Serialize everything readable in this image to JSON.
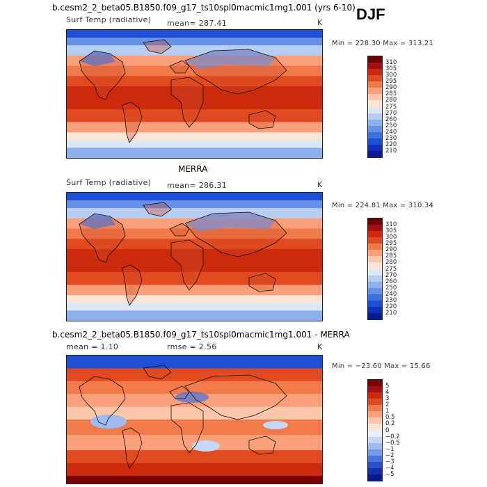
{
  "season": "DJF",
  "panels": [
    {
      "title": "b.cesm2_2_beta05.B1850.f09_g17_ts10spl0macmic1mg1.001 (yrs 6-10)",
      "variable": "Surf Temp (radiative)",
      "mean_text": "mean= 287.41",
      "units": "K",
      "minmax_text": "Min = 228.30  Max = 313.21",
      "colorbar": {
        "labels": [
          "310",
          "305",
          "300",
          "295",
          "290",
          "285",
          "280",
          "275",
          "270",
          "260",
          "250",
          "240",
          "230",
          "220",
          "210"
        ],
        "colors": [
          "#6b0000",
          "#a50f15",
          "#cb2a0d",
          "#e04a1e",
          "#f07a4a",
          "#f9a07a",
          "#fcc6a8",
          "#fbe4d4",
          "#dbe7f5",
          "#b7cdf0",
          "#8eb0ec",
          "#6490e6",
          "#3a6fe0",
          "#1f4fd4",
          "#1030b8",
          "#0a1a90"
        ]
      },
      "map_type": "abs"
    },
    {
      "title": "MERRA",
      "variable": "Surf Temp (radiative)",
      "mean_text": "mean= 286.31",
      "units": "K",
      "minmax_text": "Min = 224.81  Max = 310.34",
      "colorbar": {
        "labels": [
          "310",
          "305",
          "300",
          "295",
          "290",
          "285",
          "280",
          "275",
          "270",
          "260",
          "250",
          "240",
          "230",
          "220",
          "210"
        ],
        "colors": [
          "#6b0000",
          "#a50f15",
          "#cb2a0d",
          "#e04a1e",
          "#f07a4a",
          "#f9a07a",
          "#fcc6a8",
          "#fbe4d4",
          "#dbe7f5",
          "#b7cdf0",
          "#8eb0ec",
          "#6490e6",
          "#3a6fe0",
          "#1f4fd4",
          "#1030b8",
          "#0a1a90"
        ]
      },
      "map_type": "abs"
    },
    {
      "title": "b.cesm2_2_beta05.B1850.f09_g17_ts10spl0macmic1mg1.001 - MERRA",
      "mean_text": "mean =    1.10",
      "rmse_text": "rmse =    2.56",
      "units": "K",
      "minmax_text": "Min = −23.60  Max =   15.66",
      "colorbar": {
        "labels": [
          "5",
          "4",
          "3",
          "2",
          "1",
          "0.5",
          "0.2",
          "0",
          "−0.2",
          "−0.5",
          "−1",
          "−2",
          "−3",
          "−4",
          "−5"
        ],
        "colors": [
          "#7a0000",
          "#a50f15",
          "#cb2a0d",
          "#e04a1e",
          "#f07a4a",
          "#f9a07a",
          "#fcc6a8",
          "#fbe4d4",
          "#e6eefa",
          "#c4d7f4",
          "#9cbbee",
          "#7298e6",
          "#4a72dc",
          "#2a4fcc",
          "#1030b0",
          "#0a1a88"
        ]
      },
      "map_type": "diff"
    }
  ]
}
